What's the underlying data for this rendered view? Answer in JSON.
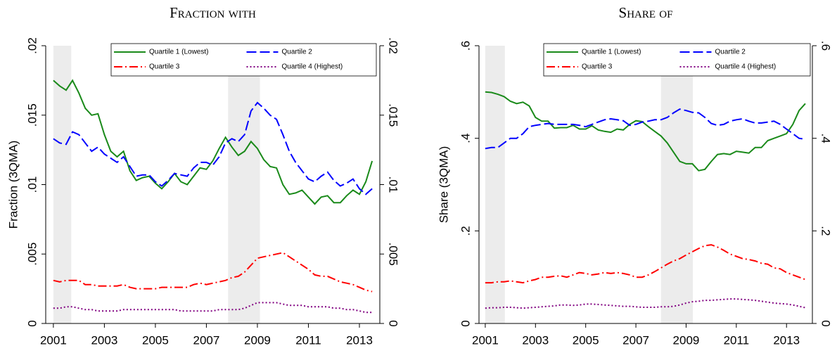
{
  "chart_data": [
    {
      "type": "line",
      "title": "Fraction with",
      "ylabel": "Fraction (3QMA)",
      "xlim": [
        2000.7,
        2013.8
      ],
      "xticks": [
        2001,
        2003,
        2005,
        2007,
        2009,
        2011,
        2013
      ],
      "ylim": [
        0,
        0.02
      ],
      "yticks": [
        0,
        {
          "value": 0.005,
          "label": ".005"
        },
        {
          "value": 0.01,
          "label": ".01"
        },
        {
          "value": 0.015,
          "label": ".015"
        },
        {
          "value": 0.02,
          "label": ".02"
        }
      ],
      "mirror_y": true,
      "grid": false,
      "legend": "top",
      "shaded_regions": [
        [
          2001,
          2001.7
        ],
        [
          2007.85,
          2009.1
        ]
      ],
      "x": [
        2001,
        2001.25,
        2001.5,
        2001.75,
        2002,
        2002.25,
        2002.5,
        2002.75,
        2003,
        2003.25,
        2003.5,
        2003.75,
        2004,
        2004.25,
        2004.5,
        2004.75,
        2005,
        2005.25,
        2005.5,
        2005.75,
        2006,
        2006.25,
        2006.5,
        2006.75,
        2007,
        2007.25,
        2007.5,
        2007.75,
        2008,
        2008.25,
        2008.5,
        2008.75,
        2009,
        2009.25,
        2009.5,
        2009.75,
        2010,
        2010.25,
        2010.5,
        2010.75,
        2011,
        2011.25,
        2011.5,
        2011.75,
        2012,
        2012.25,
        2012.5,
        2012.75,
        2013,
        2013.25,
        2013.5
      ],
      "series": [
        {
          "name": "Quartile 1 (Lowest)",
          "color": "#1a8a1a",
          "dash": "solid",
          "values": [
            0.0175,
            0.0171,
            0.0168,
            0.0175,
            0.0166,
            0.0155,
            0.015,
            0.0151,
            0.0136,
            0.0124,
            0.012,
            0.0124,
            0.011,
            0.0103,
            0.0105,
            0.0106,
            0.0101,
            0.0097,
            0.0102,
            0.0108,
            0.0102,
            0.01,
            0.0106,
            0.0112,
            0.0111,
            0.0117,
            0.0126,
            0.0134,
            0.0127,
            0.0121,
            0.0124,
            0.0131,
            0.0126,
            0.0118,
            0.0113,
            0.0112,
            0.01,
            0.0093,
            0.0094,
            0.0096,
            0.0091,
            0.0086,
            0.0091,
            0.0092,
            0.0087,
            0.0087,
            0.0092,
            0.0096,
            0.0093,
            0.0102,
            0.0117
          ]
        },
        {
          "name": "Quartile 2",
          "color": "#0000ff",
          "dash": "longdash",
          "values": [
            0.0133,
            0.013,
            0.0129,
            0.0138,
            0.0136,
            0.013,
            0.0124,
            0.0127,
            0.0122,
            0.0119,
            0.0116,
            0.012,
            0.0113,
            0.0106,
            0.0107,
            0.0107,
            0.0102,
            0.0099,
            0.0103,
            0.0108,
            0.0107,
            0.0106,
            0.0112,
            0.0116,
            0.0116,
            0.0114,
            0.012,
            0.013,
            0.0133,
            0.0131,
            0.0136,
            0.0153,
            0.0159,
            0.0155,
            0.015,
            0.0147,
            0.0136,
            0.0124,
            0.0116,
            0.011,
            0.0104,
            0.0102,
            0.0106,
            0.0109,
            0.0103,
            0.0099,
            0.0101,
            0.0104,
            0.0097,
            0.0093,
            0.0097
          ]
        },
        {
          "name": "Quartile 3",
          "color": "#ff0000",
          "dash": "dashdot",
          "values": [
            0.0031,
            0.003,
            0.0031,
            0.0031,
            0.0031,
            0.0028,
            0.0028,
            0.0027,
            0.0027,
            0.0027,
            0.0027,
            0.0028,
            0.0026,
            0.0025,
            0.0025,
            0.0025,
            0.0025,
            0.0026,
            0.0026,
            0.0026,
            0.0026,
            0.0026,
            0.0028,
            0.0029,
            0.0028,
            0.0029,
            0.003,
            0.0031,
            0.0033,
            0.0034,
            0.0037,
            0.0042,
            0.0047,
            0.0048,
            0.0049,
            0.005,
            0.0051,
            0.0048,
            0.0045,
            0.0042,
            0.0039,
            0.0035,
            0.0034,
            0.0034,
            0.0032,
            0.003,
            0.0029,
            0.0028,
            0.0026,
            0.0024,
            0.0023
          ]
        },
        {
          "name": "Quartile 4 (Highest)",
          "color": "#800080",
          "dash": "dot",
          "values": [
            0.0011,
            0.0011,
            0.0012,
            0.0012,
            0.0011,
            0.001,
            0.001,
            0.0009,
            0.0009,
            0.0009,
            0.0009,
            0.001,
            0.001,
            0.001,
            0.001,
            0.001,
            0.001,
            0.001,
            0.001,
            0.001,
            0.0009,
            0.0009,
            0.0009,
            0.0009,
            0.0009,
            0.0009,
            0.001,
            0.001,
            0.001,
            0.001,
            0.0011,
            0.0013,
            0.0015,
            0.0015,
            0.0015,
            0.0015,
            0.0014,
            0.0013,
            0.0013,
            0.0013,
            0.0012,
            0.0012,
            0.0012,
            0.0012,
            0.0011,
            0.0011,
            0.001,
            0.001,
            0.0009,
            0.0008,
            0.0008
          ]
        }
      ]
    },
    {
      "type": "line",
      "title": "Share of",
      "ylabel": "Share (3QMA)",
      "xlim": [
        2000.75,
        2014.03
      ],
      "xticks": [
        2001,
        2003,
        2005,
        2007,
        2009,
        2011,
        2013
      ],
      "ylim": [
        0,
        0.6
      ],
      "yticks": [
        0,
        {
          "value": 0.2,
          "label": ".2"
        },
        {
          "value": 0.4,
          "label": ".4"
        },
        {
          "value": 0.6,
          "label": ".6"
        }
      ],
      "mirror_y": true,
      "grid": false,
      "legend": "top",
      "shaded_regions": [
        [
          2001,
          2001.78
        ],
        [
          2008,
          2009.27
        ]
      ],
      "x": [
        2001,
        2001.25,
        2001.5,
        2001.75,
        2002,
        2002.25,
        2002.5,
        2002.75,
        2003,
        2003.25,
        2003.5,
        2003.75,
        2004,
        2004.25,
        2004.5,
        2004.75,
        2005,
        2005.25,
        2005.5,
        2005.75,
        2006,
        2006.25,
        2006.5,
        2006.75,
        2007,
        2007.25,
        2007.5,
        2007.75,
        2008,
        2008.25,
        2008.5,
        2008.75,
        2009,
        2009.25,
        2009.5,
        2009.75,
        2010,
        2010.25,
        2010.5,
        2010.75,
        2011,
        2011.25,
        2011.5,
        2011.75,
        2012,
        2012.25,
        2012.5,
        2012.75,
        2013,
        2013.25,
        2013.5,
        2013.75
      ],
      "series": [
        {
          "name": "Quartile 1 (Lowest)",
          "color": "#1a8a1a",
          "dash": "solid",
          "values": [
            0.5,
            0.499,
            0.495,
            0.49,
            0.48,
            0.475,
            0.478,
            0.47,
            0.445,
            0.437,
            0.437,
            0.422,
            0.423,
            0.423,
            0.428,
            0.42,
            0.42,
            0.427,
            0.418,
            0.415,
            0.413,
            0.42,
            0.418,
            0.43,
            0.438,
            0.436,
            0.425,
            0.415,
            0.405,
            0.39,
            0.37,
            0.35,
            0.345,
            0.345,
            0.33,
            0.333,
            0.35,
            0.365,
            0.367,
            0.365,
            0.372,
            0.37,
            0.368,
            0.38,
            0.38,
            0.395,
            0.4,
            0.405,
            0.41,
            0.43,
            0.46,
            0.475
          ]
        },
        {
          "name": "Quartile 2",
          "color": "#0000ff",
          "dash": "longdash",
          "values": [
            0.378,
            0.38,
            0.38,
            0.39,
            0.4,
            0.4,
            0.41,
            0.425,
            0.428,
            0.43,
            0.432,
            0.43,
            0.43,
            0.43,
            0.43,
            0.428,
            0.425,
            0.43,
            0.435,
            0.44,
            0.442,
            0.44,
            0.438,
            0.428,
            0.43,
            0.435,
            0.437,
            0.44,
            0.44,
            0.445,
            0.455,
            0.463,
            0.46,
            0.456,
            0.455,
            0.445,
            0.432,
            0.428,
            0.43,
            0.437,
            0.44,
            0.442,
            0.437,
            0.433,
            0.433,
            0.435,
            0.437,
            0.43,
            0.42,
            0.41,
            0.4,
            0.398
          ]
        },
        {
          "name": "Quartile 3",
          "color": "#ff0000",
          "dash": "dashdot",
          "values": [
            0.088,
            0.088,
            0.09,
            0.09,
            0.092,
            0.09,
            0.088,
            0.092,
            0.095,
            0.1,
            0.1,
            0.102,
            0.103,
            0.1,
            0.105,
            0.11,
            0.108,
            0.105,
            0.107,
            0.11,
            0.108,
            0.11,
            0.108,
            0.105,
            0.1,
            0.1,
            0.105,
            0.112,
            0.12,
            0.128,
            0.135,
            0.14,
            0.148,
            0.155,
            0.162,
            0.168,
            0.17,
            0.165,
            0.158,
            0.15,
            0.145,
            0.14,
            0.138,
            0.135,
            0.13,
            0.128,
            0.12,
            0.118,
            0.11,
            0.105,
            0.1,
            0.095
          ]
        },
        {
          "name": "Quartile 4 (Highest)",
          "color": "#800080",
          "dash": "dot",
          "values": [
            0.033,
            0.034,
            0.034,
            0.035,
            0.035,
            0.034,
            0.033,
            0.034,
            0.035,
            0.036,
            0.037,
            0.038,
            0.04,
            0.04,
            0.039,
            0.04,
            0.042,
            0.042,
            0.041,
            0.04,
            0.039,
            0.038,
            0.037,
            0.037,
            0.036,
            0.035,
            0.035,
            0.035,
            0.036,
            0.036,
            0.037,
            0.04,
            0.044,
            0.047,
            0.048,
            0.05,
            0.05,
            0.051,
            0.052,
            0.053,
            0.053,
            0.052,
            0.051,
            0.05,
            0.048,
            0.046,
            0.044,
            0.043,
            0.042,
            0.04,
            0.037,
            0.034
          ]
        }
      ]
    }
  ]
}
